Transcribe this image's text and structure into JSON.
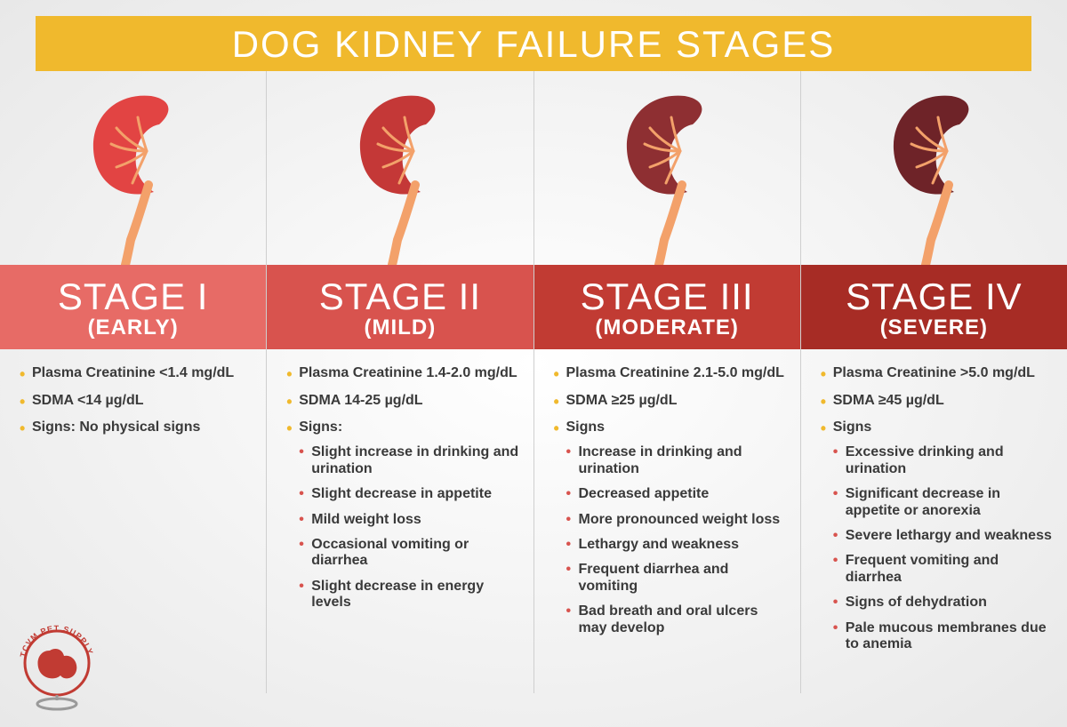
{
  "title": "DOG KIDNEY FAILURE STAGES",
  "title_bg": "#f0b92d",
  "title_color": "#ffffff",
  "bullet_color": "#f0b92d",
  "sub_bullet_color": "#d8534e",
  "text_color": "#3a3a3a",
  "divider_color": "#cfcfcf",
  "background": "radial-gradient(ellipse at center, #ffffff 0%, #e8e8e8 100%)",
  "ureter_color": "#f3a16a",
  "vessel_color": "#f3a16a",
  "logo_text": "TCVM PET SUPPLY",
  "logo_color": "#c13b33",
  "stages": [
    {
      "name": "STAGE I",
      "subtitle": "(EARLY)",
      "header_bg": "#e76b66",
      "kidney_color": "#e24443",
      "items": [
        {
          "text": "Plasma Creatinine <1.4 mg/dL"
        },
        {
          "text": "SDMA <14 µg/dL"
        },
        {
          "text": "Signs: No physical signs"
        }
      ]
    },
    {
      "name": "STAGE II",
      "subtitle": "(MILD)",
      "header_bg": "#d8534e",
      "kidney_color": "#c43837",
      "items": [
        {
          "text": "Plasma Creatinine 1.4-2.0 mg/dL"
        },
        {
          "text": "SDMA 14-25 µg/dL"
        },
        {
          "text": "Signs:",
          "sub": [
            "Slight increase in drinking and urination",
            "Slight decrease in appetite",
            "Mild weight loss",
            "Occasional vomiting or diarrhea",
            "Slight decrease in energy levels"
          ]
        }
      ]
    },
    {
      "name": "STAGE III",
      "subtitle": "(MODERATE)",
      "header_bg": "#c13b33",
      "kidney_color": "#8e2f32",
      "items": [
        {
          "text": "Plasma Creatinine 2.1-5.0 mg/dL"
        },
        {
          "text": "SDMA ≥25 µg/dL"
        },
        {
          "text": "Signs",
          "sub": [
            "Increase in drinking and urination",
            "Decreased appetite",
            "More pronounced weight loss",
            "Lethargy and weakness",
            "Frequent diarrhea and vomiting",
            "Bad breath and oral ulcers may develop"
          ]
        }
      ]
    },
    {
      "name": "STAGE IV",
      "subtitle": "(SEVERE)",
      "header_bg": "#a72c25",
      "kidney_color": "#6e2328",
      "items": [
        {
          "text": "Plasma Creatinine >5.0 mg/dL"
        },
        {
          "text": "SDMA ≥45 µg/dL"
        },
        {
          "text": "Signs",
          "sub": [
            "Excessive drinking and urination",
            "Significant decrease in appetite or anorexia",
            "Severe lethargy and weakness",
            "Frequent vomiting and diarrhea",
            "Signs of dehydration",
            "Pale mucous membranes due to anemia"
          ]
        }
      ]
    }
  ]
}
